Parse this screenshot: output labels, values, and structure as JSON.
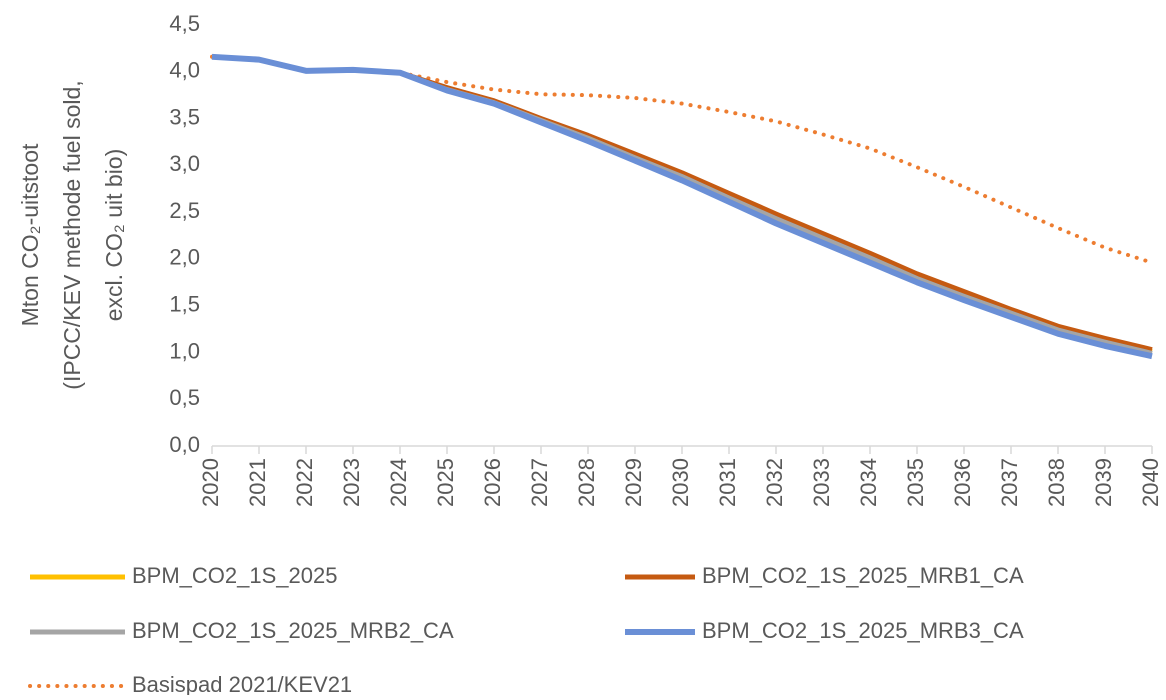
{
  "chart_data": {
    "type": "line",
    "ylabel": [
      "Mton CO₂-uitstoot",
      "(IPCC/KEV methode fuel sold,",
      "excl. CO₂ uit bio)"
    ],
    "categories": [
      "2020",
      "2021",
      "2022",
      "2023",
      "2024",
      "2025",
      "2026",
      "2027",
      "2028",
      "2029",
      "2030",
      "2031",
      "2032",
      "2033",
      "2034",
      "2035",
      "2036",
      "2037",
      "2038",
      "2039",
      "2040"
    ],
    "ylim": [
      0,
      4.5
    ],
    "yticks": [
      {
        "value": 0,
        "label": "0,0"
      },
      {
        "value": 0.5,
        "label": "0,5"
      },
      {
        "value": 1,
        "label": "1,0"
      },
      {
        "value": 1.5,
        "label": "1,5"
      },
      {
        "value": 2,
        "label": "2,0"
      },
      {
        "value": 2.5,
        "label": "2,5"
      },
      {
        "value": 3,
        "label": "3,0"
      },
      {
        "value": 3.5,
        "label": "3,5"
      },
      {
        "value": 4,
        "label": "4,0"
      },
      {
        "value": 4.5,
        "label": "4,5"
      }
    ],
    "grid": false,
    "series": [
      {
        "name": "BPM_CO2_1S_2025",
        "color": "#ffc000",
        "dash": "solid",
        "values": [
          4.16,
          4.13,
          4.01,
          4.02,
          3.99,
          3.82,
          3.68,
          3.49,
          3.3,
          3.1,
          2.9,
          2.68,
          2.46,
          2.25,
          2.04,
          1.82,
          1.63,
          1.44,
          1.26,
          1.13,
          1.01
        ]
      },
      {
        "name": "BPM_CO2_1S_2025_MRB1_CA",
        "color": "#c55a11",
        "dash": "solid",
        "values": [
          4.16,
          4.13,
          4.01,
          4.02,
          3.99,
          3.83,
          3.69,
          3.5,
          3.32,
          3.12,
          2.92,
          2.7,
          2.48,
          2.27,
          2.06,
          1.84,
          1.65,
          1.46,
          1.28,
          1.15,
          1.03
        ]
      },
      {
        "name": "BPM_CO2_1S_2025_MRB2_CA",
        "color": "#a5a5a5",
        "dash": "solid",
        "values": [
          4.16,
          4.13,
          4.01,
          4.02,
          3.99,
          3.81,
          3.67,
          3.48,
          3.29,
          3.08,
          2.88,
          2.65,
          2.43,
          2.22,
          2.01,
          1.79,
          1.6,
          1.42,
          1.24,
          1.11,
          0.99
        ]
      },
      {
        "name": "BPM_CO2_1S_2025_MRB3_CA",
        "color": "#6a8fd6",
        "dash": "solid",
        "values": [
          4.16,
          4.13,
          4.01,
          4.02,
          3.99,
          3.8,
          3.66,
          3.46,
          3.26,
          3.05,
          2.84,
          2.61,
          2.38,
          2.17,
          1.96,
          1.75,
          1.56,
          1.38,
          1.2,
          1.07,
          0.96
        ]
      },
      {
        "name": "Basispad 2021/KEV21",
        "color": "#ed7d31",
        "dash": "dotted",
        "values": [
          4.16,
          4.13,
          4.01,
          4.02,
          3.99,
          3.89,
          3.81,
          3.76,
          3.75,
          3.72,
          3.66,
          3.57,
          3.47,
          3.33,
          3.18,
          2.98,
          2.77,
          2.55,
          2.33,
          2.12,
          1.96
        ]
      }
    ]
  }
}
